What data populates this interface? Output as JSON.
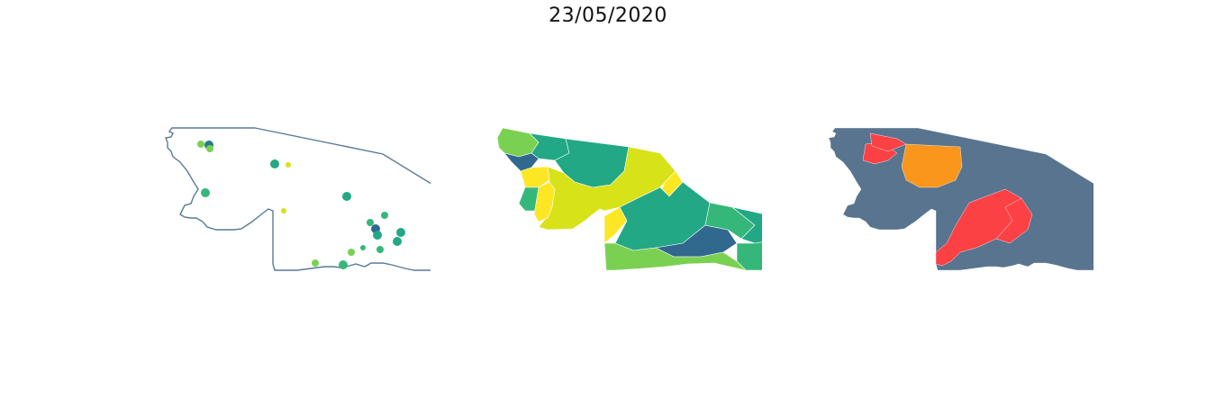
{
  "figure": {
    "title": "23/05/2020"
  },
  "maps": {
    "points_panel": {
      "outline_color": "#587a99",
      "points": [
        {
          "id": 1,
          "color": "#7ad151"
        },
        {
          "id": 2,
          "color": "#2a788e"
        },
        {
          "id": 3,
          "color": "#7ad151"
        },
        {
          "id": 4,
          "color": "#22a884"
        },
        {
          "id": 5,
          "color": "#d8e219"
        },
        {
          "id": 6,
          "color": "#35b779"
        },
        {
          "id": 7,
          "color": "#22a884"
        },
        {
          "id": 8,
          "color": "#d8e219"
        },
        {
          "id": 9,
          "color": "#35b779"
        },
        {
          "id": 10,
          "color": "#35b779"
        },
        {
          "id": 11,
          "color": "#31688e"
        },
        {
          "id": 12,
          "color": "#22a884"
        },
        {
          "id": 13,
          "color": "#22a884"
        },
        {
          "id": 14,
          "color": "#22a884"
        },
        {
          "id": 15,
          "color": "#35b779"
        },
        {
          "id": 16,
          "color": "#7ad151"
        },
        {
          "id": 17,
          "color": "#35b779"
        },
        {
          "id": 18,
          "color": "#7ad151"
        },
        {
          "id": 19,
          "color": "#35b779"
        }
      ]
    },
    "regions_panel": {
      "palette": [
        "#31688e",
        "#22a884",
        "#35b779",
        "#7ad151",
        "#d8e219",
        "#fde725"
      ]
    },
    "risk_panel": {
      "palette": [
        "#58748f",
        "#fc4144",
        "#fa961b",
        "#fcc852"
      ]
    }
  }
}
